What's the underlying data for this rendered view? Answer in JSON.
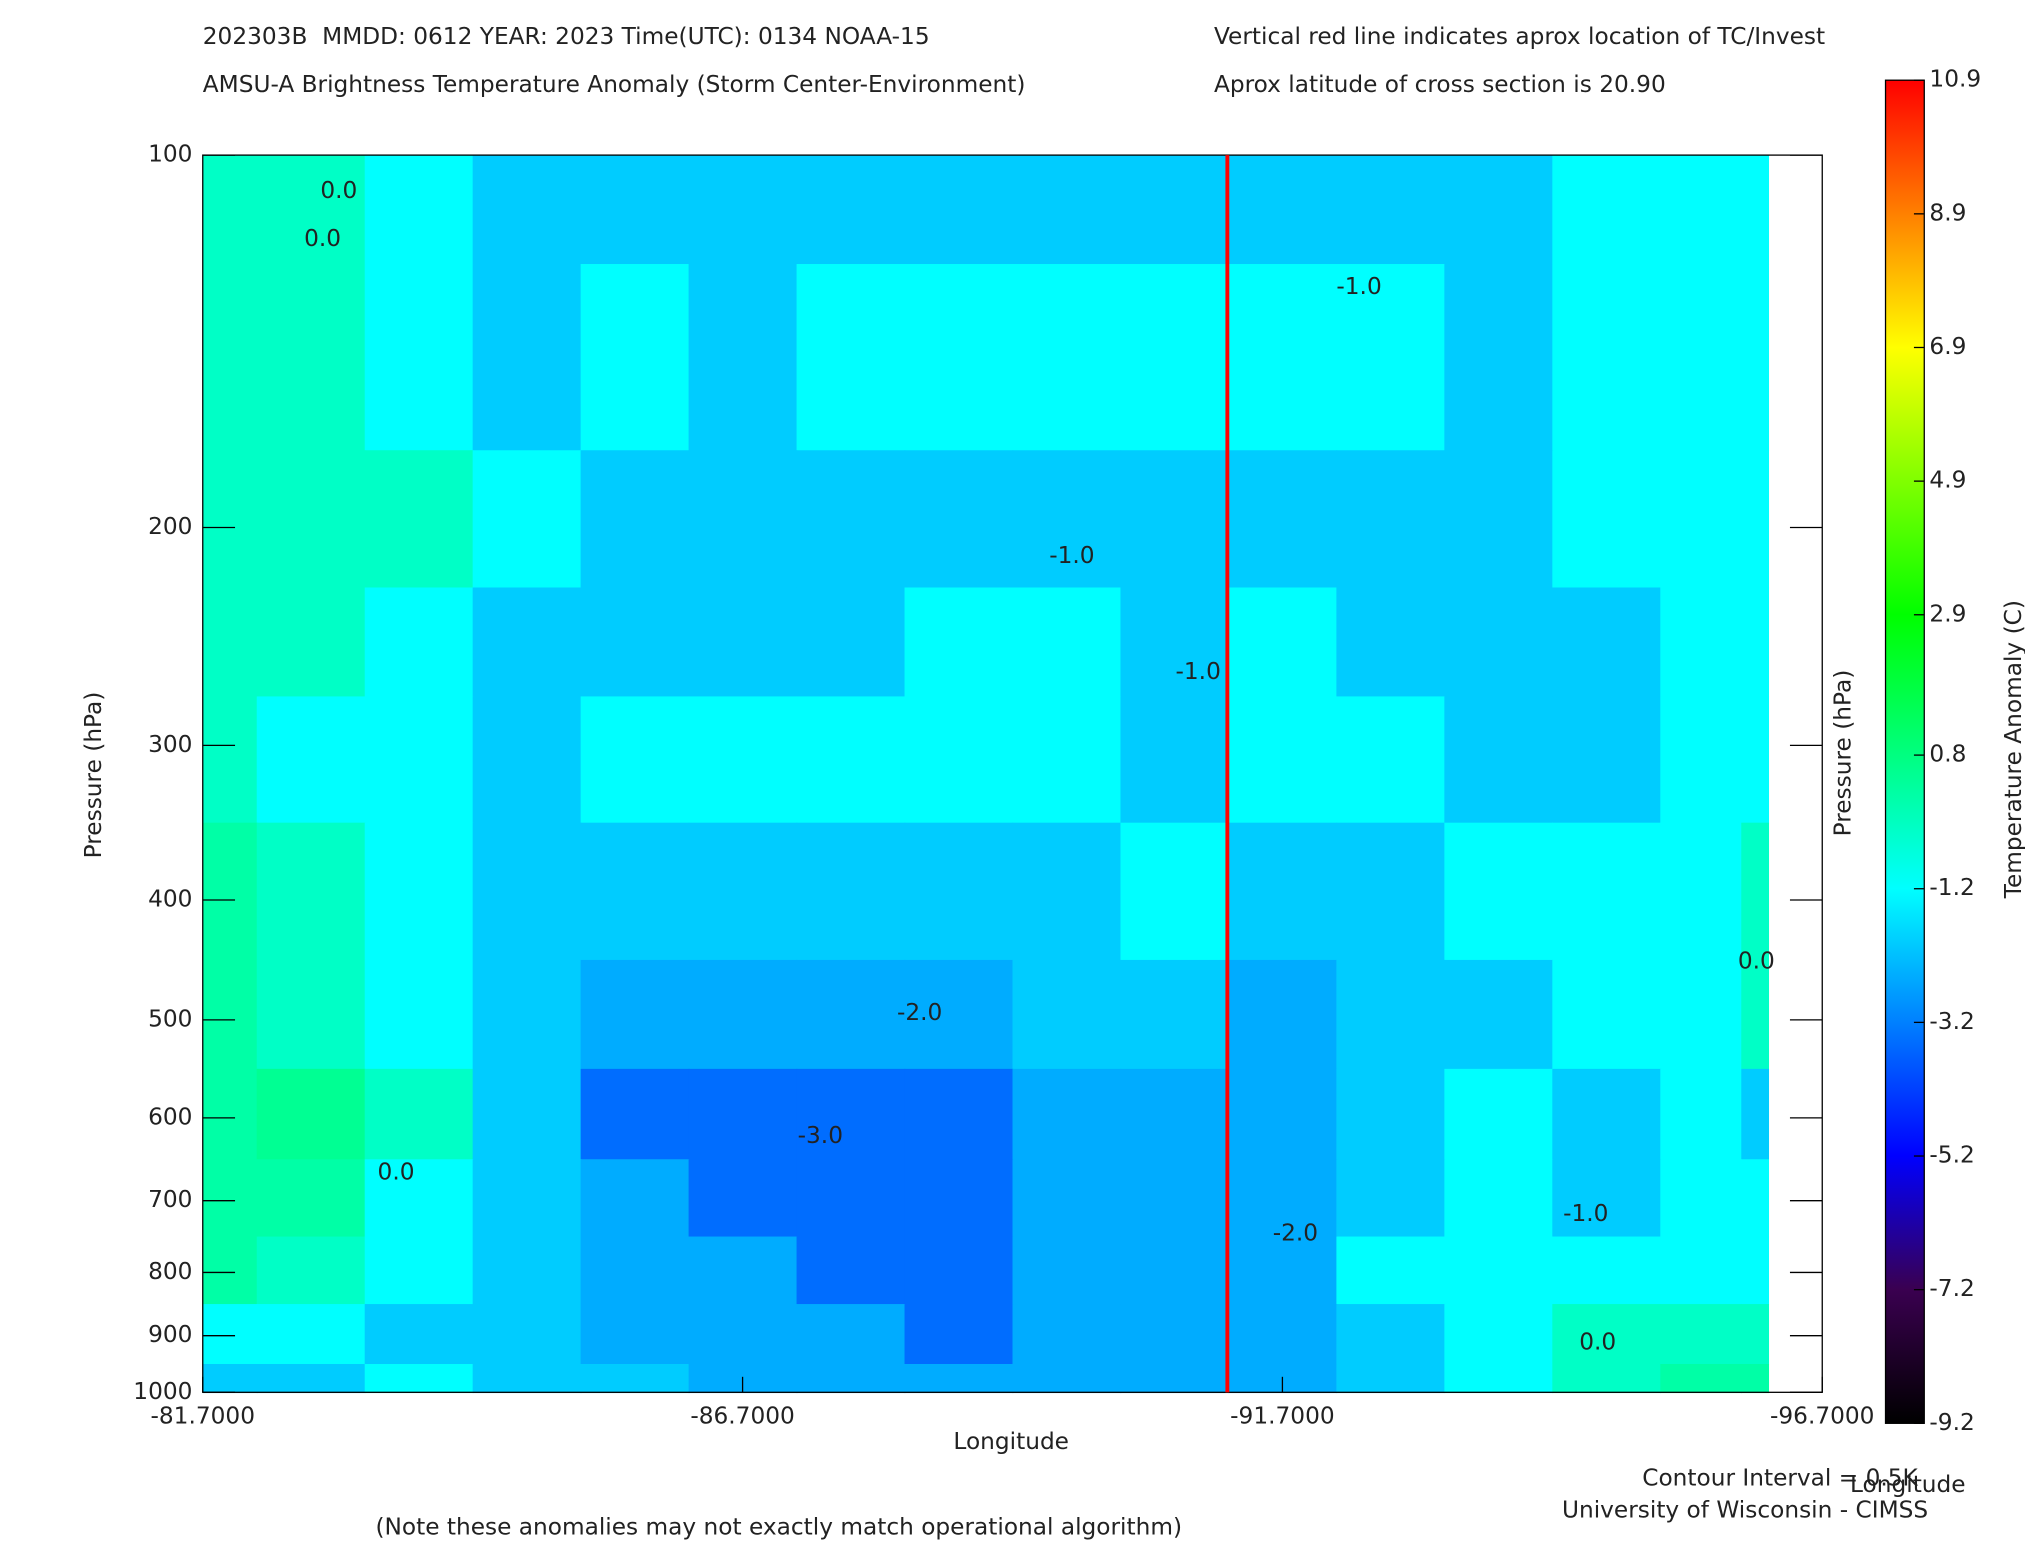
{
  "chart_data": {
    "type": "contour",
    "title_lines": [
      "202303B  MMDD: 0612 YEAR: 2023 Time(UTC): 0134 NOAA-15",
      "AMSU-A Brightness Temperature Anomaly (Storm Center-Environment)"
    ],
    "info_lines": [
      "Vertical red line indicates aprox location of TC/Invest",
      "Aprox latitude of cross section is 20.90"
    ],
    "x_label": "Longitude",
    "y_label": "Pressure (hPa)",
    "y2_label": "Pressure (hPa)",
    "colorbar_label": "Temperature Anomaly (C)",
    "contour_interval_text": "Contour Interval = 0.5K",
    "x_label_right": "Longitude",
    "credit": "University of Wisconsin - CIMSS",
    "note": "(Note these anomalies may not exactly match operational algorithm)",
    "note_color": "#ff5a3c",
    "xlim": [
      -81.7,
      -96.7
    ],
    "xticks": [
      {
        "value": -81.7,
        "label": "-81.7000"
      },
      {
        "value": -86.7,
        "label": "-86.7000"
      },
      {
        "value": -91.7,
        "label": "-91.7000"
      },
      {
        "value": -96.7,
        "label": "-96.7000"
      }
    ],
    "ylim": [
      100,
      1000
    ],
    "log_y": true,
    "yticks": [
      100,
      200,
      300,
      400,
      500,
      600,
      700,
      800,
      900,
      1000
    ],
    "storm_longitude": -91.19,
    "storm_line_color": "#ff0000",
    "x": [
      -81.7,
      -82.7,
      -83.7,
      -84.7,
      -85.7,
      -86.7,
      -87.7,
      -88.7,
      -89.7,
      -90.7,
      -91.7,
      -92.7,
      -93.7,
      -94.7,
      -95.7,
      -96.2
    ],
    "y": [
      100,
      150,
      200,
      250,
      300,
      400,
      500,
      600,
      700,
      800,
      900,
      1000
    ],
    "z": [
      [
        -0.3,
        -0.3,
        -1.2,
        -2.0,
        -2.0,
        -2.0,
        -2.0,
        -2.0,
        -2.0,
        -2.0,
        -2.0,
        -2.0,
        -2.0,
        -1.2,
        -1.2,
        -1.2
      ],
      [
        -0.3,
        -0.3,
        -1.2,
        -2.0,
        -1.2,
        -2.0,
        -1.2,
        -1.2,
        -1.2,
        -1.2,
        -1.2,
        -1.2,
        -2.0,
        -1.2,
        -1.2,
        -1.2
      ],
      [
        -0.3,
        -0.3,
        -0.3,
        -1.2,
        -2.0,
        -2.0,
        -2.0,
        -2.0,
        -2.0,
        -2.0,
        -2.0,
        -2.0,
        -2.0,
        -1.2,
        -1.2,
        -1.2
      ],
      [
        -0.3,
        -0.3,
        -1.2,
        -2.0,
        -2.0,
        -2.0,
        -2.0,
        -1.2,
        -1.2,
        -2.0,
        -1.2,
        -2.0,
        -2.0,
        -2.0,
        -1.2,
        -1.2
      ],
      [
        -0.3,
        -1.2,
        -1.2,
        -2.0,
        -1.2,
        -1.2,
        -1.2,
        -1.2,
        -1.2,
        -2.0,
        -1.2,
        -1.2,
        -2.0,
        -2.0,
        -1.2,
        -1.2
      ],
      [
        0.2,
        -0.3,
        -1.2,
        -2.0,
        -2.0,
        -2.0,
        -2.0,
        -2.0,
        -2.0,
        -1.2,
        -2.0,
        -2.0,
        -1.2,
        -1.2,
        -1.2,
        -0.3
      ],
      [
        0.2,
        -0.3,
        -1.2,
        -2.0,
        -2.5,
        -2.5,
        -2.5,
        -2.5,
        -2.0,
        -2.0,
        -2.5,
        -2.0,
        -2.0,
        -1.2,
        -1.2,
        -0.3
      ],
      [
        0.2,
        0.5,
        -0.3,
        -2.0,
        -3.5,
        -3.5,
        -3.5,
        -3.5,
        -2.5,
        -2.5,
        -2.5,
        -2.0,
        -1.2,
        -2.0,
        -1.2,
        -2.0
      ],
      [
        0.2,
        0.2,
        -1.2,
        -2.0,
        -2.5,
        -3.5,
        -3.5,
        -3.5,
        -2.5,
        -2.5,
        -2.5,
        -2.0,
        -1.2,
        -2.0,
        -1.2,
        -1.2
      ],
      [
        0.2,
        -0.3,
        -1.2,
        -2.0,
        -2.5,
        -2.5,
        -3.5,
        -3.5,
        -2.5,
        -2.5,
        -2.5,
        -1.2,
        -1.2,
        -1.2,
        -1.2,
        -1.2
      ],
      [
        -1.2,
        -1.2,
        -2.0,
        -2.0,
        -2.5,
        -2.5,
        -2.5,
        -3.5,
        -2.5,
        -2.5,
        -2.5,
        -2.0,
        -1.2,
        -0.3,
        -0.3,
        -0.3
      ],
      [
        -2.0,
        -2.0,
        -1.2,
        -2.0,
        -2.0,
        -2.5,
        -2.5,
        -2.5,
        -2.5,
        -2.5,
        -2.5,
        -2.0,
        -1.2,
        -0.3,
        0.2,
        0.2
      ]
    ],
    "annotations": [
      {
        "text": "0.0",
        "x": -82.96,
        "y": 107
      },
      {
        "text": "0.0",
        "x": -82.81,
        "y": 117
      },
      {
        "text": "-1.0",
        "x": -92.41,
        "y": 128
      },
      {
        "text": "-1.0",
        "x": -89.75,
        "y": 211
      },
      {
        "text": "-1.0",
        "x": -90.92,
        "y": 262
      },
      {
        "text": "-2.0",
        "x": -88.34,
        "y": 494
      },
      {
        "text": "-3.0",
        "x": -87.42,
        "y": 621
      },
      {
        "text": "0.0",
        "x": -83.49,
        "y": 665
      },
      {
        "text": "-2.0",
        "x": -91.82,
        "y": 745
      },
      {
        "text": "-1.0",
        "x": -94.51,
        "y": 718
      },
      {
        "text": "0.0",
        "x": -94.62,
        "y": 912
      },
      {
        "text": "0.0",
        "x": -96.09,
        "y": 449
      }
    ],
    "colorbar": {
      "lim": [
        -9.2,
        10.9
      ],
      "ticks": [
        10.9,
        8.9,
        6.9,
        4.9,
        2.9,
        0.8,
        -1.2,
        -3.2,
        -5.2,
        -7.2,
        -9.2
      ],
      "colors": [
        "#ff0000",
        "#ff8000",
        "#ffff00",
        "#80ff00",
        "#00ff00",
        "#00ff80",
        "#00ffff",
        "#0080ff",
        "#0000ff",
        "#3a0050",
        "#000000"
      ]
    }
  }
}
